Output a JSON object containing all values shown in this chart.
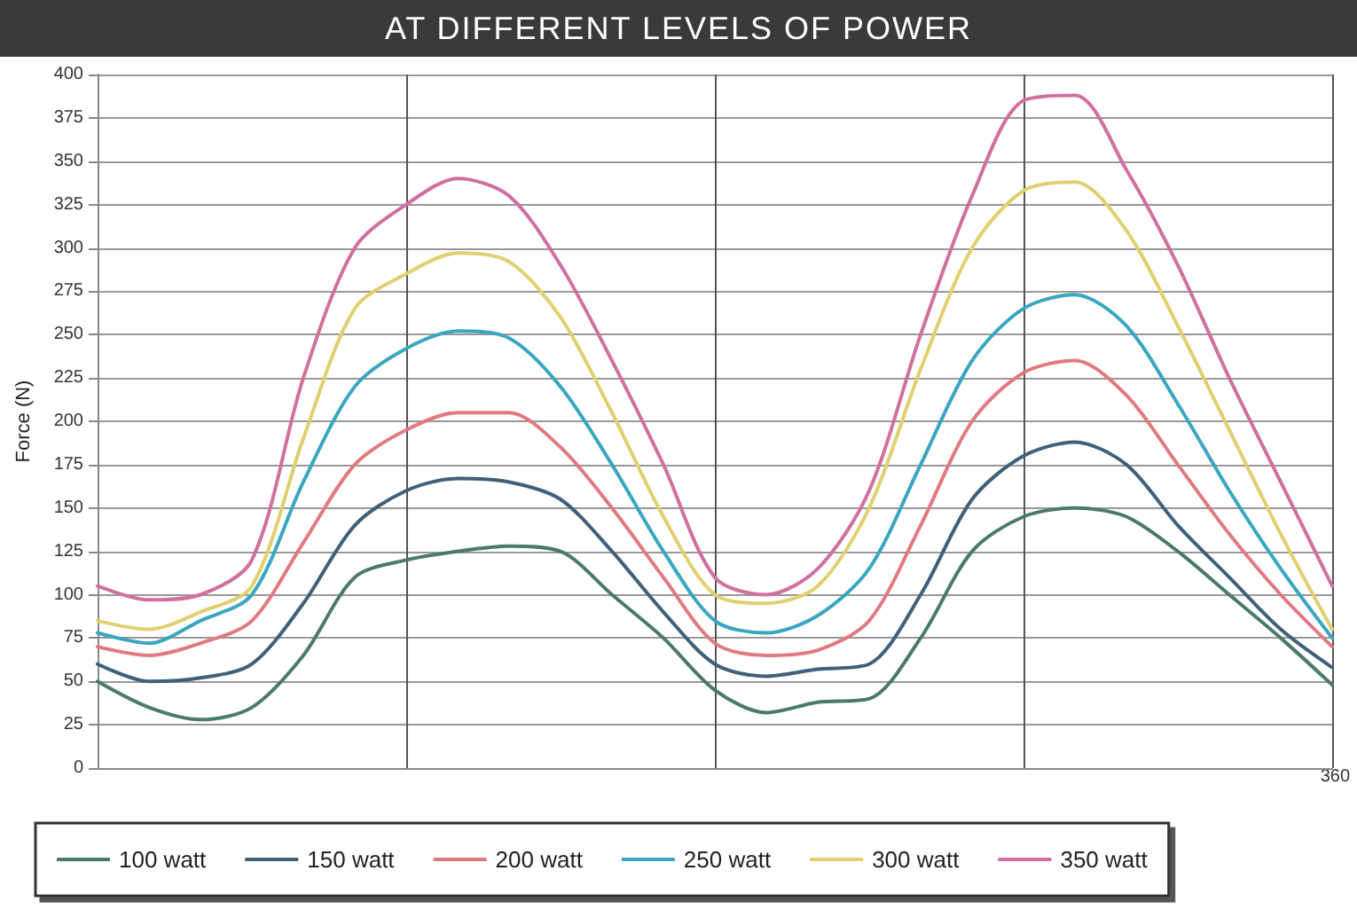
{
  "chart_data": {
    "type": "line",
    "title": "AT DIFFERENT LEVELS OF POWER",
    "ylabel": "Force (N)",
    "categories": [
      null,
      null,
      null,
      null,
      null,
      null,
      null,
      null,
      null,
      null,
      null,
      null,
      null,
      null,
      null,
      null,
      null,
      null,
      null,
      null,
      null,
      null,
      null,
      null,
      null
    ],
    "annotations": [
      "360"
    ],
    "ylim": [
      0,
      400
    ],
    "yticks": [
      0,
      25,
      50,
      75,
      100,
      125,
      150,
      175,
      200,
      225,
      250,
      275,
      300,
      325,
      350,
      375,
      400
    ],
    "grid": true,
    "legend": "bottom",
    "marker": "none",
    "line_style": "solid",
    "series": [
      {
        "name": "100 watt",
        "color": "#4a7a6a",
        "values": [
          50,
          35,
          28,
          35,
          65,
          110,
          120,
          125,
          128,
          125,
          100,
          75,
          45,
          32,
          38,
          40,
          75,
          125,
          145,
          150,
          145,
          125,
          100,
          75,
          48
        ]
      },
      {
        "name": "150 watt",
        "color": "#40607a",
        "values": [
          60,
          50,
          52,
          60,
          95,
          140,
          160,
          167,
          165,
          155,
          125,
          90,
          60,
          53,
          57,
          60,
          100,
          155,
          180,
          188,
          175,
          140,
          110,
          80,
          58
        ]
      },
      {
        "name": "200 watt",
        "color": "#e07a80",
        "values": [
          70,
          65,
          72,
          85,
          130,
          175,
          195,
          205,
          205,
          185,
          150,
          110,
          72,
          65,
          68,
          85,
          140,
          200,
          228,
          235,
          215,
          175,
          135,
          100,
          70
        ]
      },
      {
        "name": "250 watt",
        "color": "#3aa6c0",
        "values": [
          78,
          72,
          85,
          100,
          165,
          220,
          242,
          252,
          248,
          220,
          175,
          125,
          85,
          78,
          88,
          115,
          175,
          235,
          265,
          273,
          255,
          210,
          160,
          115,
          75
        ]
      },
      {
        "name": "300 watt",
        "color": "#e0d070",
        "values": [
          85,
          80,
          90,
          105,
          190,
          265,
          285,
          297,
          292,
          260,
          205,
          145,
          100,
          95,
          105,
          150,
          230,
          300,
          333,
          338,
          310,
          255,
          195,
          135,
          80
        ]
      },
      {
        "name": "350 watt",
        "color": "#d070a0",
        "values": [
          105,
          97,
          100,
          120,
          225,
          300,
          325,
          340,
          330,
          290,
          235,
          175,
          110,
          100,
          115,
          160,
          250,
          330,
          385,
          388,
          345,
          290,
          225,
          165,
          105
        ]
      }
    ]
  }
}
